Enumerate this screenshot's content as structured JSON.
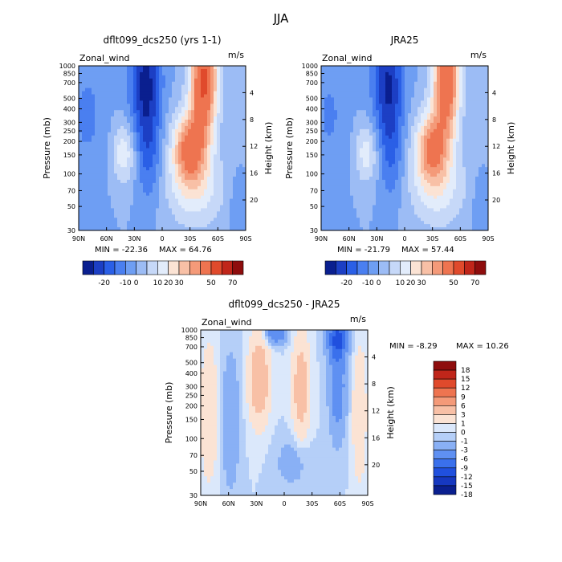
{
  "figure_title": "JJA",
  "palettes": {
    "full": [
      "#0a1f8f",
      "#1c3fc4",
      "#2a5fe6",
      "#4a7ff0",
      "#6e9ef3",
      "#9cbcf5",
      "#c6d8f8",
      "#e2ecfb",
      "#fbe3d4",
      "#f8c0a6",
      "#f49a79",
      "#ee7450",
      "#e04a2c",
      "#c0261a",
      "#8e0d0d"
    ],
    "full_labels": [
      "-20",
      "-10",
      "0",
      "10",
      "20",
      "30",
      "50",
      "70"
    ],
    "diff": [
      "#0a1f8f",
      "#1638c0",
      "#2050de",
      "#3a70ec",
      "#5f90f2",
      "#89b0f5",
      "#b5cff8",
      "#dbe8fb",
      "#fbe3d4",
      "#f8c0a6",
      "#f49a79",
      "#ee7450",
      "#e04a2c",
      "#c0261a",
      "#8e0d0d"
    ],
    "diff_labels": [
      "18",
      "15",
      "12",
      "9",
      "6",
      "3",
      "1",
      "0",
      "-1",
      "-3",
      "-6",
      "-9",
      "-12",
      "-15",
      "-18"
    ]
  },
  "chart_data": [
    {
      "type": "heatmap",
      "title": "dflt099_dcs250 (yrs 1-1)",
      "left_label": "Zonal_wind",
      "right_label": "m/s",
      "xlabel": "",
      "ylabel": "Pressure (mb)",
      "ylabel_right": "Height (km)",
      "x_ticks": [
        "90N",
        "60N",
        "30N",
        "0",
        "30S",
        "60S",
        "90S"
      ],
      "y_ticks": [
        30,
        50,
        70,
        100,
        150,
        200,
        250,
        300,
        400,
        500,
        700,
        850,
        1000
      ],
      "y_right_ticks": [
        4,
        8,
        12,
        16,
        20
      ],
      "min_label": "MIN = -22.36",
      "max_label": "MAX = 64.76",
      "stats": {
        "min": -22.36,
        "max": 64.76
      },
      "colorbar": "horizontal"
    },
    {
      "type": "heatmap",
      "title": "JRA25",
      "left_label": "Zonal_wind",
      "right_label": "m/s",
      "xlabel": "",
      "ylabel": "Pressure (mb)",
      "ylabel_right": "Height (km)",
      "x_ticks": [
        "90N",
        "60N",
        "30N",
        "0",
        "30S",
        "60S",
        "90S"
      ],
      "y_ticks": [
        30,
        50,
        70,
        100,
        150,
        200,
        250,
        300,
        400,
        500,
        700,
        850,
        1000
      ],
      "y_right_ticks": [
        4,
        8,
        12,
        16,
        20
      ],
      "min_label": "MIN = -21.79",
      "max_label": "MAX = 57.44",
      "stats": {
        "min": -21.79,
        "max": 57.44
      },
      "colorbar": "horizontal"
    },
    {
      "type": "heatmap",
      "title": "dflt099_dcs250 - JRA25",
      "left_label": "Zonal_wind",
      "right_label": "m/s",
      "xlabel": "",
      "ylabel": "Pressure (mb)",
      "ylabel_right": "Height (km)",
      "x_ticks": [
        "90N",
        "60N",
        "30N",
        "0",
        "30S",
        "60S",
        "90S"
      ],
      "y_ticks": [
        30,
        50,
        70,
        100,
        150,
        200,
        250,
        300,
        400,
        500,
        700,
        850,
        1000
      ],
      "y_right_ticks": [
        4,
        8,
        12,
        16,
        20
      ],
      "min_label": "MIN =  -8.29",
      "max_label": "MAX =  10.26",
      "stats": {
        "min": -8.29,
        "max": 10.26
      },
      "colorbar": "vertical"
    }
  ]
}
